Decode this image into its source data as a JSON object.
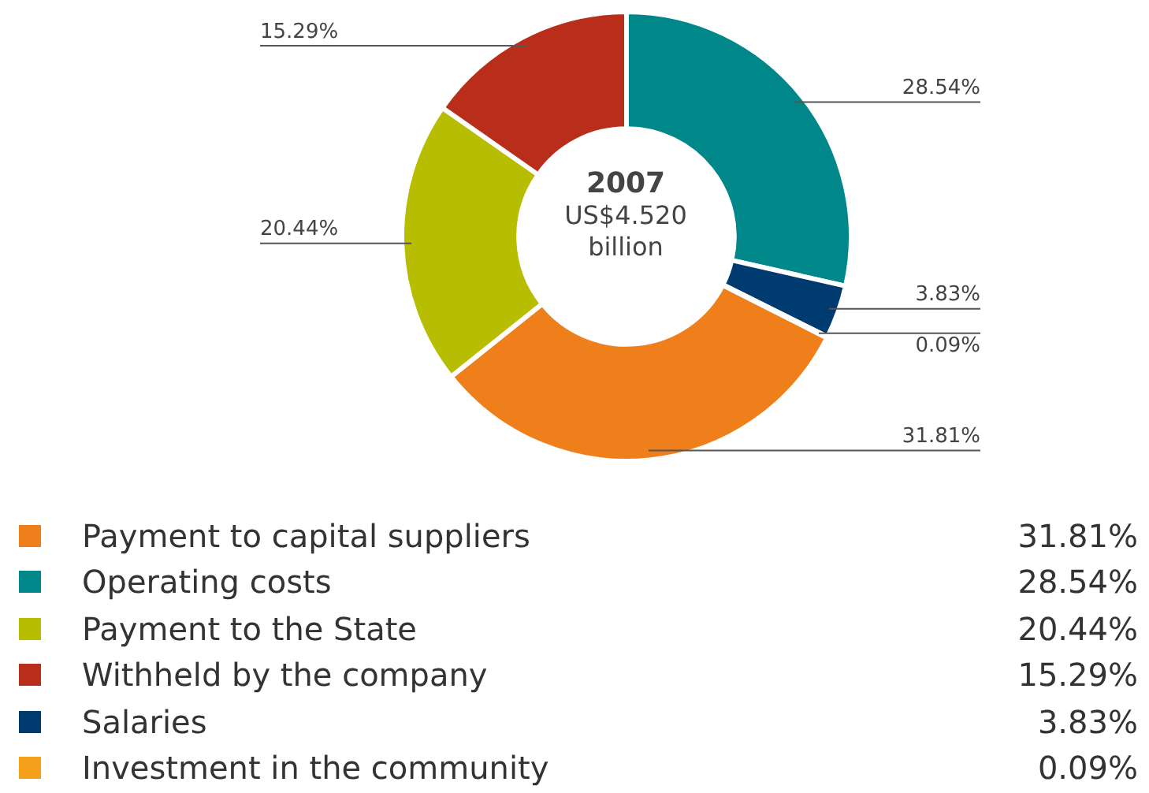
{
  "chart_data": {
    "type": "donut",
    "title": "2007",
    "annotations": [
      "US$4.520 billion"
    ],
    "categories": [
      "Operating costs",
      "Salaries",
      "Investment in the community",
      "Payment to capital suppliers",
      "Payment to the State",
      "Withheld by the company"
    ],
    "values": [
      28.54,
      3.83,
      0.09,
      31.81,
      20.44,
      15.29
    ],
    "value_labels": [
      "28.54%",
      "3.83%",
      "0.09%",
      "31.81%",
      "20.44%",
      "15.29%"
    ],
    "colors": [
      "#00878a",
      "#003b6f",
      "#f5a01a",
      "#ee7f1b",
      "#b7bd00",
      "#b92e1a"
    ],
    "legend": "bottom"
  }
}
